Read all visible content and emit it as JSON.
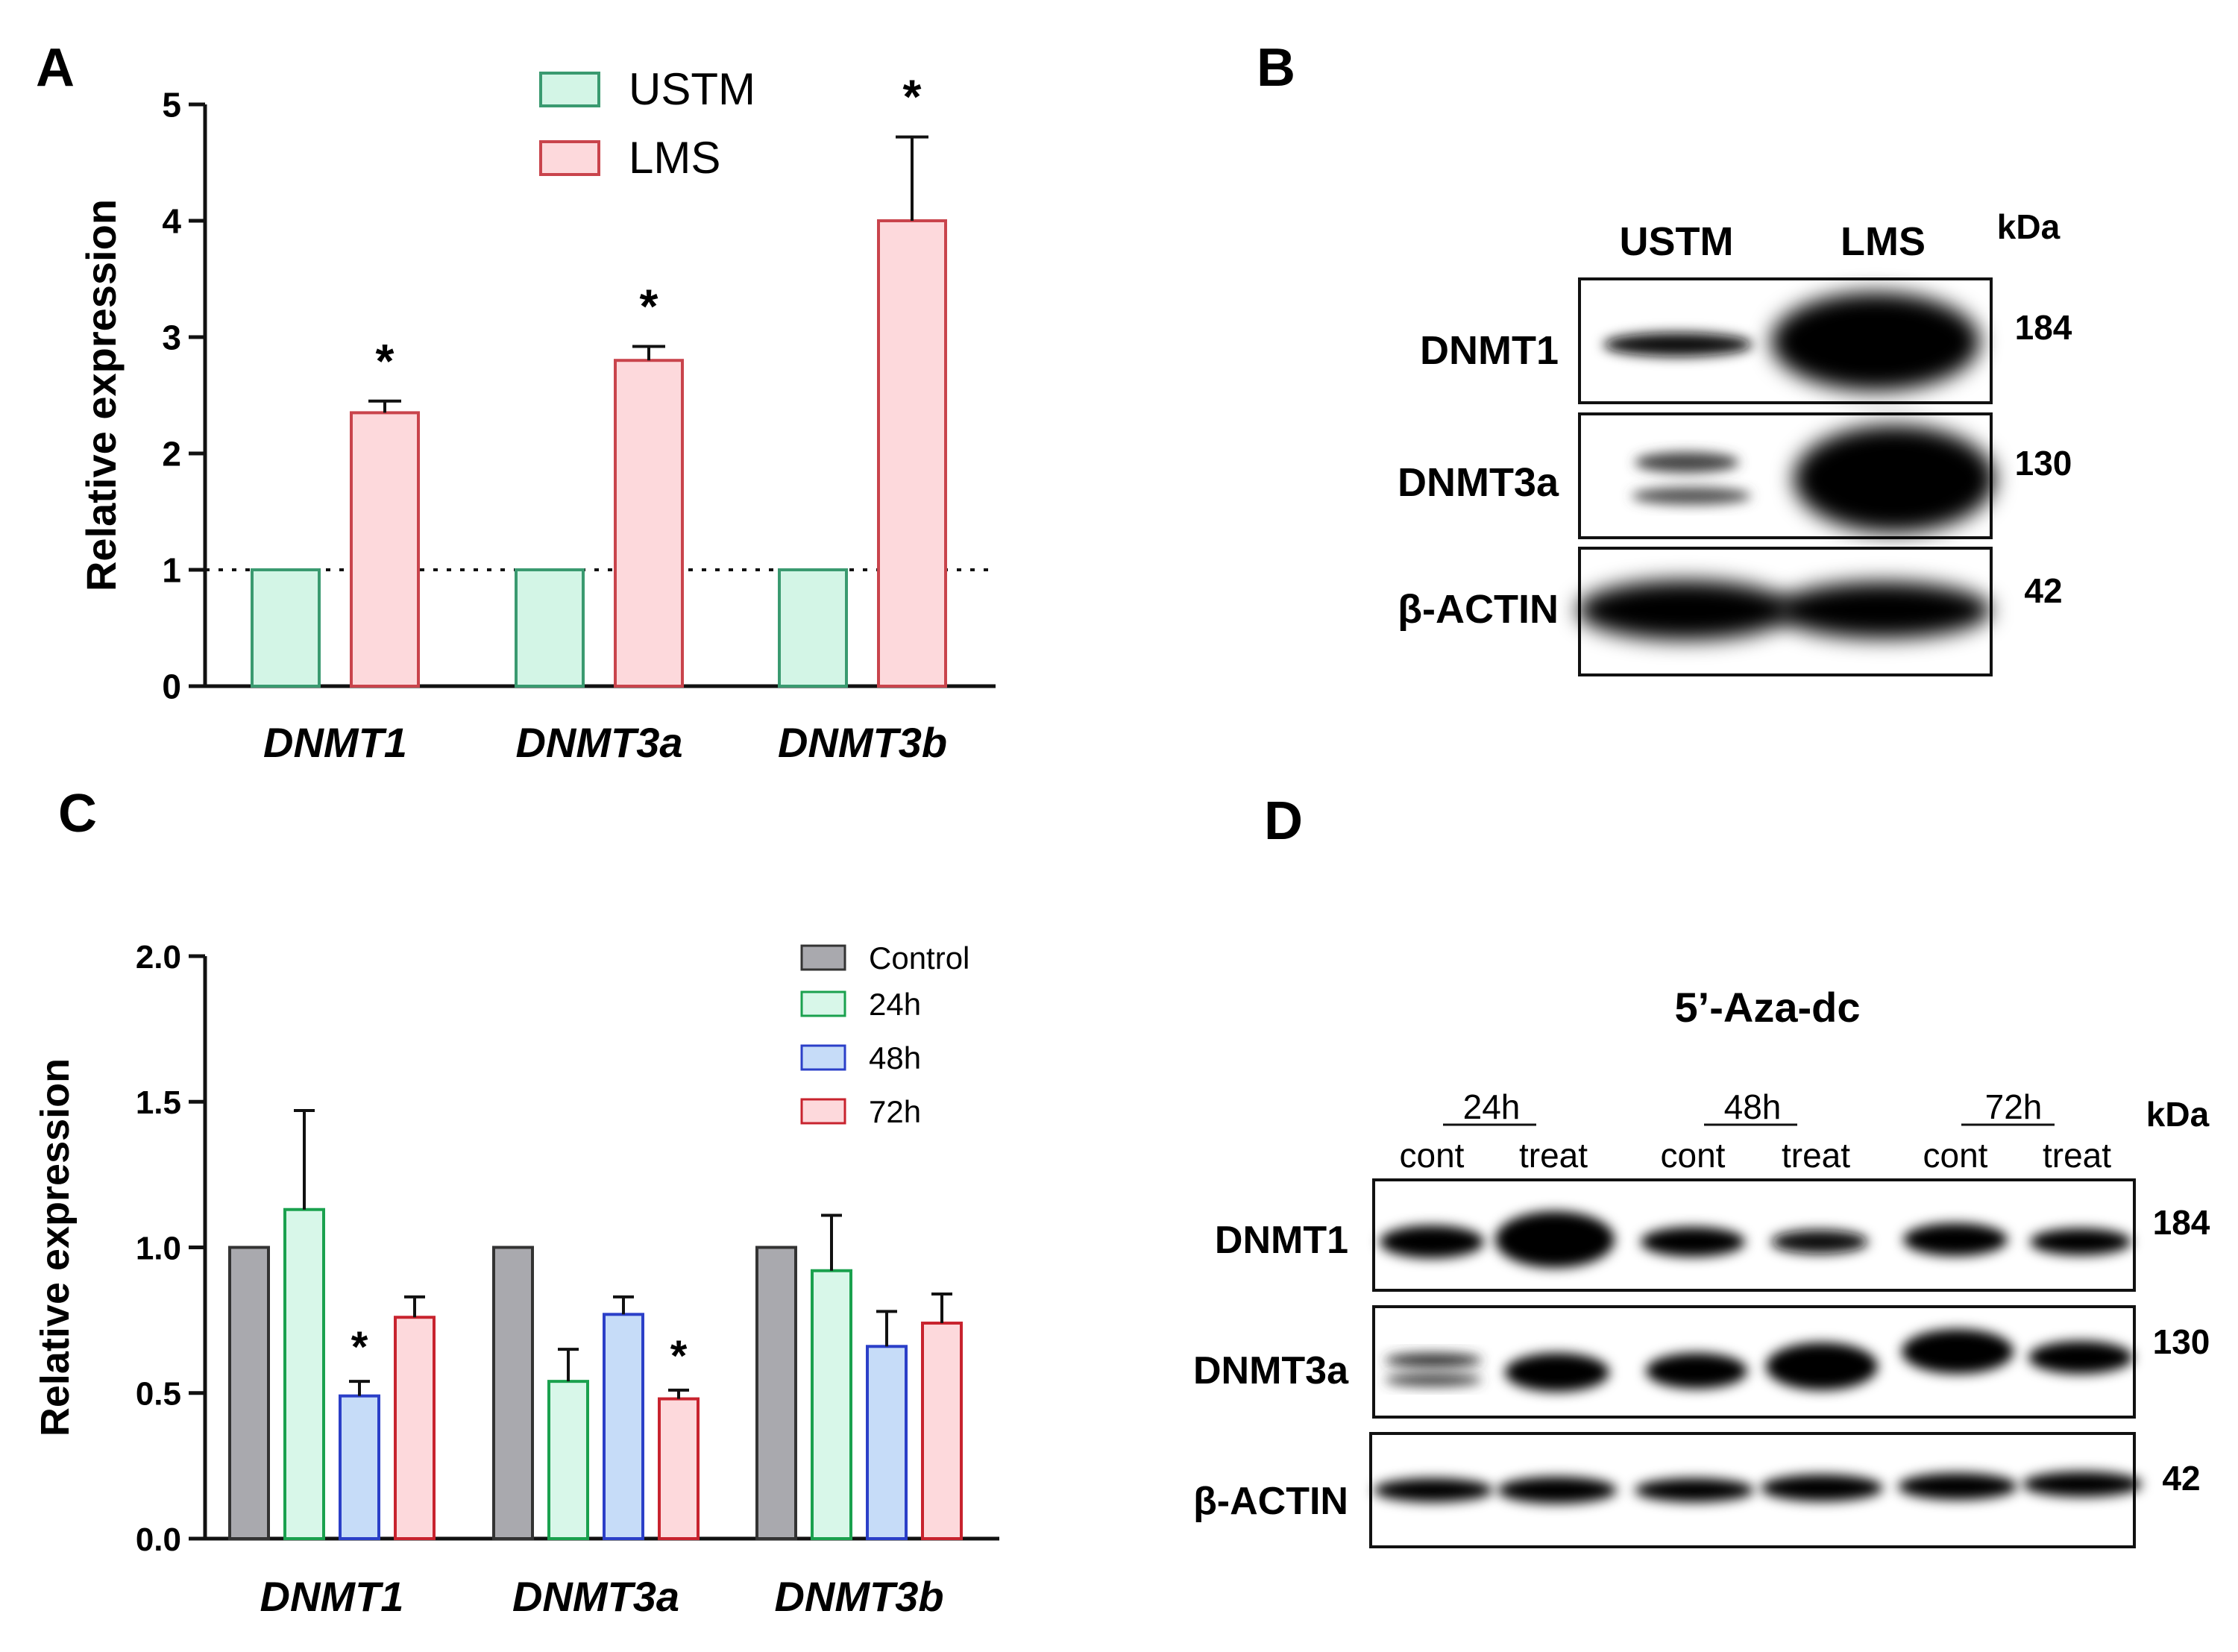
{
  "panels": {
    "a": "A",
    "b": "B",
    "c": "C",
    "d": "D"
  },
  "colors": {
    "ustm_fill": "#d3f5e6",
    "ustm_stroke": "#3a9a70",
    "lms_fill": "#fdd9dc",
    "lms_stroke": "#c9444c",
    "control_fill": "#a9a9ae",
    "control_stroke": "#333333",
    "h24_fill": "#d8f7e9",
    "h24_stroke": "#1aa14e",
    "h48_fill": "#c6dcf8",
    "h48_stroke": "#2b3fc8",
    "h72_fill": "#fdd9dc",
    "h72_stroke": "#c8232e"
  },
  "chart_data": [
    {
      "panel": "A",
      "type": "bar",
      "ylabel": "Relative expression",
      "xlabel": "",
      "ylim": [
        0,
        5
      ],
      "yticks": [
        "0",
        "1",
        "2",
        "3",
        "4",
        "5"
      ],
      "reference_line": 1,
      "categories": [
        "DNMT1",
        "DNMT3a",
        "DNMT3b"
      ],
      "legend_position": "top-center",
      "significance_marker": "*",
      "series": [
        {
          "name": "USTM",
          "values": [
            1,
            1,
            1
          ],
          "errors": [
            0,
            0,
            0
          ],
          "significant": [
            false,
            false,
            false
          ]
        },
        {
          "name": "LMS",
          "values": [
            2.35,
            2.8,
            4.0
          ],
          "errors": [
            0.1,
            0.12,
            0.72
          ],
          "significant": [
            true,
            true,
            true
          ]
        }
      ]
    },
    {
      "panel": "C",
      "type": "bar",
      "ylabel": "Relative expression",
      "xlabel": "",
      "ylim": [
        0,
        2
      ],
      "yticks": [
        "0.0",
        "0.5",
        "1.0",
        "1.5",
        "2.0"
      ],
      "categories": [
        "DNMT1",
        "DNMT3a",
        "DNMT3b"
      ],
      "legend_position": "top-right",
      "significance_marker": "*",
      "series": [
        {
          "name": "Control",
          "values": [
            1,
            1,
            1
          ],
          "errors": [
            0,
            0,
            0
          ],
          "significant": [
            false,
            false,
            false
          ]
        },
        {
          "name": "24h",
          "values": [
            1.13,
            0.54,
            0.92
          ],
          "errors": [
            0.34,
            0.11,
            0.19
          ],
          "significant": [
            false,
            false,
            false
          ]
        },
        {
          "name": "48h",
          "values": [
            0.49,
            0.77,
            0.66
          ],
          "errors": [
            0.05,
            0.06,
            0.12
          ],
          "significant": [
            true,
            false,
            false
          ]
        },
        {
          "name": "72h",
          "values": [
            0.76,
            0.48,
            0.74
          ],
          "errors": [
            0.07,
            0.03,
            0.1
          ],
          "significant": [
            false,
            true,
            false
          ]
        }
      ]
    }
  ],
  "blot_b": {
    "columns": [
      "USTM",
      "LMS"
    ],
    "unit": "kDa",
    "rows": [
      {
        "label": "DNMT1",
        "kda": "184"
      },
      {
        "label": "DNMT3a",
        "kda": "130"
      },
      {
        "label": "β-ACTIN",
        "kda": "42"
      }
    ]
  },
  "blot_d": {
    "title": "5’-Aza-dc",
    "unit": "kDa",
    "timepoints": [
      "24h",
      "48h",
      "72h"
    ],
    "lane_labels": [
      "cont",
      "treat",
      "cont",
      "treat",
      "cont",
      "treat"
    ],
    "rows": [
      {
        "label": "DNMT1",
        "kda": "184"
      },
      {
        "label": "DNMT3a",
        "kda": "130"
      },
      {
        "label": "β-ACTIN",
        "kda": "42"
      }
    ]
  }
}
